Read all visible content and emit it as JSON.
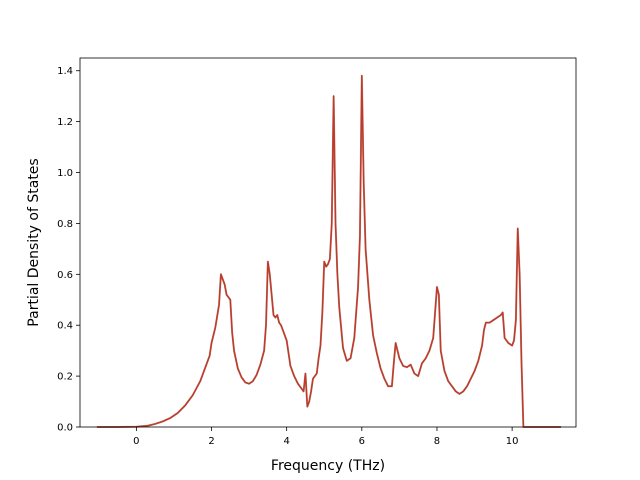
{
  "chart_data": {
    "type": "line",
    "title": "",
    "xlabel": "Frequency (THz)",
    "ylabel": "Partial Density of States",
    "xlim": [
      -1.5,
      11.7
    ],
    "ylim": [
      0.0,
      1.45
    ],
    "x_ticks": [
      0,
      2,
      4,
      6,
      8,
      10
    ],
    "y_ticks": [
      0.0,
      0.2,
      0.4,
      0.6,
      0.8,
      1.0,
      1.2,
      1.4
    ],
    "x_tick_labels": [
      "0",
      "2",
      "4",
      "6",
      "8",
      "10"
    ],
    "y_tick_labels": [
      "0.0",
      "0.2",
      "0.4",
      "0.6",
      "0.8",
      "1.0",
      "1.2",
      "1.4"
    ],
    "grid": false,
    "legend": "none",
    "colors": {
      "line": "#c0392b",
      "line_shadow": "#7a5a3a"
    },
    "series": [
      {
        "x": [
          -1.05,
          -0.5,
          0.0,
          0.3,
          0.5,
          0.7,
          0.9,
          1.1,
          1.3,
          1.5,
          1.7,
          1.85,
          1.95,
          2.0,
          2.1,
          2.2,
          2.25,
          2.3,
          2.35,
          2.4,
          2.45,
          2.5,
          2.55,
          2.6,
          2.7,
          2.8,
          2.9,
          3.0,
          3.1,
          3.2,
          3.3,
          3.4,
          3.45,
          3.5,
          3.55,
          3.6,
          3.65,
          3.7,
          3.75,
          3.8,
          3.85,
          3.9,
          4.0,
          4.05,
          4.1,
          4.2,
          4.3,
          4.4,
          4.45,
          4.5,
          4.55,
          4.6,
          4.65,
          4.7,
          4.8,
          4.85,
          4.9,
          4.95,
          5.0,
          5.05,
          5.1,
          5.15,
          5.2,
          5.25,
          5.3,
          5.35,
          5.4,
          5.5,
          5.6,
          5.7,
          5.8,
          5.9,
          5.95,
          6.0,
          6.05,
          6.1,
          6.2,
          6.3,
          6.4,
          6.5,
          6.6,
          6.7,
          6.8,
          6.85,
          6.9,
          6.95,
          7.0,
          7.1,
          7.2,
          7.3,
          7.4,
          7.5,
          7.6,
          7.7,
          7.8,
          7.9,
          7.95,
          8.0,
          8.05,
          8.1,
          8.2,
          8.3,
          8.4,
          8.5,
          8.6,
          8.7,
          8.8,
          8.9,
          9.0,
          9.1,
          9.2,
          9.25,
          9.3,
          9.4,
          9.5,
          9.6,
          9.7,
          9.75,
          9.8,
          9.9,
          10.0,
          10.05,
          10.1,
          10.15,
          10.2,
          10.25,
          10.3,
          10.35,
          11.3
        ],
        "y": [
          0.0,
          0.0,
          0.001,
          0.005,
          0.012,
          0.022,
          0.035,
          0.055,
          0.085,
          0.125,
          0.18,
          0.24,
          0.28,
          0.33,
          0.39,
          0.48,
          0.6,
          0.58,
          0.56,
          0.52,
          0.51,
          0.5,
          0.37,
          0.3,
          0.23,
          0.195,
          0.175,
          0.17,
          0.18,
          0.205,
          0.245,
          0.3,
          0.4,
          0.65,
          0.6,
          0.52,
          0.44,
          0.43,
          0.44,
          0.41,
          0.4,
          0.38,
          0.34,
          0.29,
          0.24,
          0.2,
          0.17,
          0.15,
          0.14,
          0.21,
          0.08,
          0.1,
          0.14,
          0.19,
          0.21,
          0.27,
          0.32,
          0.45,
          0.65,
          0.63,
          0.64,
          0.66,
          0.8,
          1.3,
          0.8,
          0.6,
          0.47,
          0.31,
          0.26,
          0.27,
          0.35,
          0.55,
          0.75,
          1.38,
          0.96,
          0.7,
          0.5,
          0.36,
          0.29,
          0.23,
          0.19,
          0.16,
          0.16,
          0.25,
          0.33,
          0.3,
          0.27,
          0.24,
          0.235,
          0.245,
          0.21,
          0.2,
          0.25,
          0.27,
          0.3,
          0.35,
          0.45,
          0.55,
          0.52,
          0.3,
          0.22,
          0.18,
          0.16,
          0.14,
          0.13,
          0.14,
          0.16,
          0.19,
          0.22,
          0.26,
          0.32,
          0.38,
          0.41,
          0.41,
          0.42,
          0.43,
          0.44,
          0.45,
          0.35,
          0.33,
          0.32,
          0.34,
          0.42,
          0.78,
          0.6,
          0.25,
          0.0,
          0.0,
          0.0
        ]
      }
    ]
  }
}
